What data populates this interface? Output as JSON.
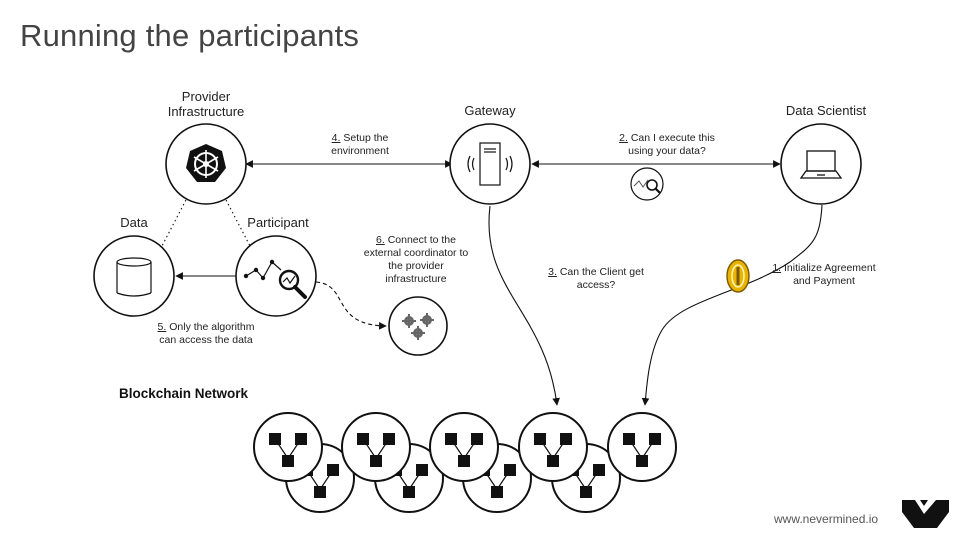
{
  "title": "Running the participants",
  "nodes": {
    "provider": {
      "label_line1": "Provider",
      "label_line2": "Infrastructure"
    },
    "gateway": {
      "label": "Gateway"
    },
    "data_scientist": {
      "label": "Data Scientist"
    },
    "data": {
      "label": "Data"
    },
    "participant": {
      "label": "Participant"
    }
  },
  "steps": {
    "s1": {
      "num": "1.",
      "line1": "Initialize Agreement",
      "line2": "and Payment"
    },
    "s2": {
      "num": "2.",
      "line1": "Can I execute this",
      "line2": "using your data?"
    },
    "s3": {
      "num": "3.",
      "line1": "Can the Client get",
      "line2": "access?"
    },
    "s4": {
      "num": "4.",
      "line1": "Setup the",
      "line2": "environment"
    },
    "s5": {
      "num": "5.",
      "line1": "Only the algorithm",
      "line2": "can access the data"
    },
    "s6": {
      "num": "6.",
      "line1": "Connect to the",
      "line2": "external coordinator to",
      "line3": "the provider",
      "line4": "infrastructure"
    }
  },
  "blockchain": {
    "label": "Blockchain Network"
  },
  "footer": {
    "url": "www.nevermined.io"
  },
  "colors": {
    "stroke": "#111111",
    "text": "#222222",
    "coin": "#e8b400"
  }
}
